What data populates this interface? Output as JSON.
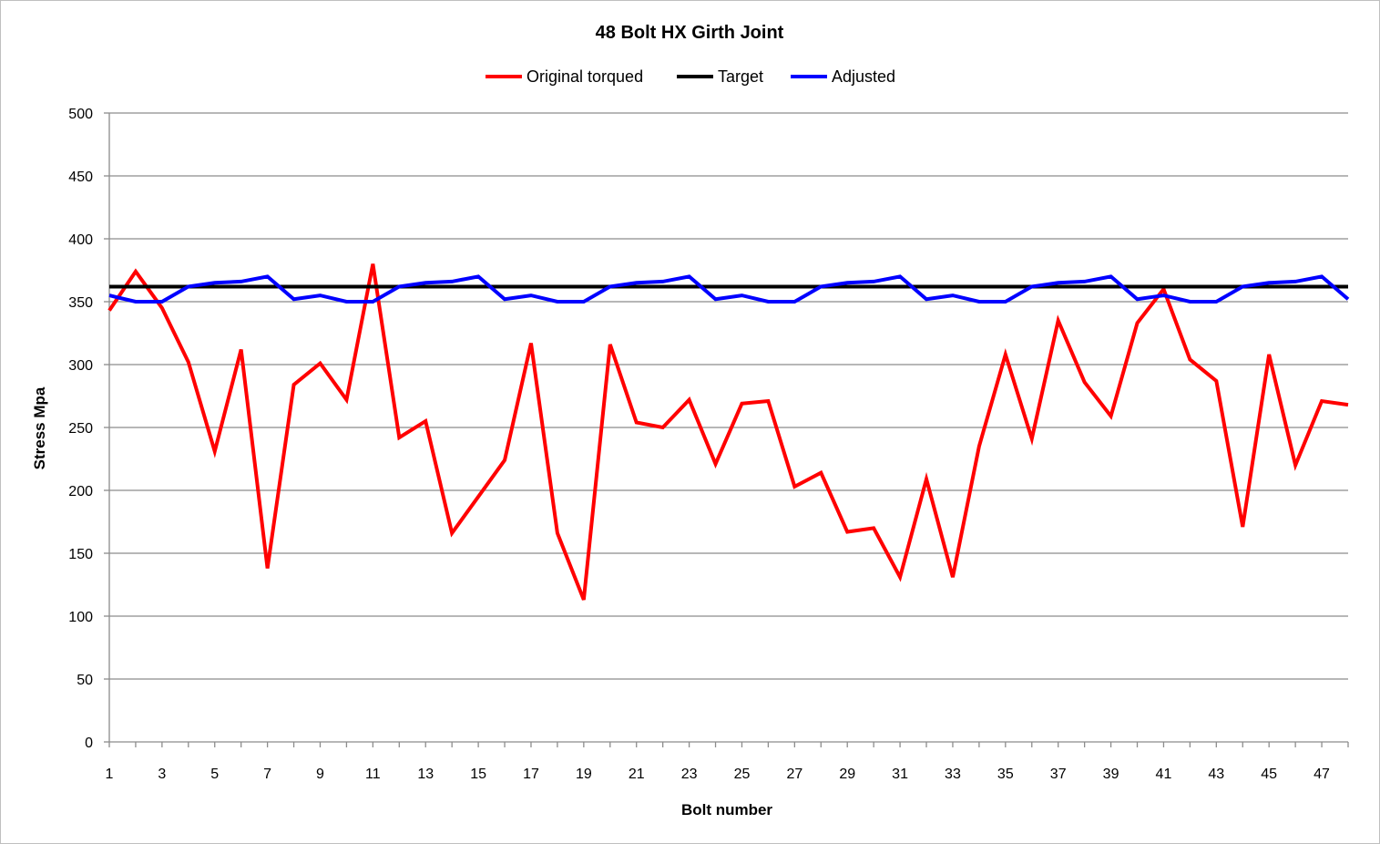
{
  "chart_data": {
    "type": "line",
    "title": "48 Bolt HX Girth Joint",
    "xlabel": "Bolt number",
    "ylabel": "Stress Mpa",
    "ylim": [
      0,
      500
    ],
    "y_ticks": [
      0,
      50,
      100,
      150,
      200,
      250,
      300,
      350,
      400,
      450,
      500
    ],
    "x": [
      1,
      2,
      3,
      4,
      5,
      6,
      7,
      8,
      9,
      10,
      11,
      12,
      13,
      14,
      15,
      16,
      17,
      18,
      19,
      20,
      21,
      22,
      23,
      24,
      25,
      26,
      27,
      28,
      29,
      30,
      31,
      32,
      33,
      34,
      35,
      36,
      37,
      38,
      39,
      40,
      41,
      42,
      43,
      44,
      45,
      46,
      47,
      48
    ],
    "x_tick_labels": [
      "1",
      "3",
      "5",
      "7",
      "9",
      "11",
      "13",
      "15",
      "17",
      "19",
      "21",
      "23",
      "25",
      "27",
      "29",
      "31",
      "33",
      "35",
      "37",
      "39",
      "41",
      "43",
      "45",
      "47"
    ],
    "grid": "horizontal",
    "legend_position": "top",
    "series": [
      {
        "name": "Original torqued",
        "color": "#ff0000",
        "values": [
          343,
          374,
          345,
          302,
          231,
          312,
          138,
          284,
          301,
          272,
          380,
          242,
          255,
          166,
          195,
          224,
          317,
          166,
          113,
          316,
          254,
          250,
          272,
          221,
          269,
          271,
          203,
          214,
          167,
          170,
          131,
          209,
          131,
          235,
          308,
          241,
          335,
          286,
          259,
          333,
          360,
          304,
          287,
          171,
          308,
          220,
          271,
          268
        ]
      },
      {
        "name": "Target",
        "color": "#000000",
        "values": [
          362,
          362,
          362,
          362,
          362,
          362,
          362,
          362,
          362,
          362,
          362,
          362,
          362,
          362,
          362,
          362,
          362,
          362,
          362,
          362,
          362,
          362,
          362,
          362,
          362,
          362,
          362,
          362,
          362,
          362,
          362,
          362,
          362,
          362,
          362,
          362,
          362,
          362,
          362,
          362,
          362,
          362,
          362,
          362,
          362,
          362,
          362,
          362
        ]
      },
      {
        "name": "Adjusted",
        "color": "#0000ff",
        "values": [
          355,
          350,
          350,
          362,
          365,
          366,
          370,
          352,
          355,
          350,
          350,
          362,
          365,
          366,
          370,
          352,
          355,
          350,
          350,
          362,
          365,
          366,
          370,
          352,
          355,
          350,
          350,
          362,
          365,
          366,
          370,
          352,
          355,
          350,
          350,
          362,
          365,
          366,
          370,
          352,
          355,
          350,
          350,
          362,
          365,
          366,
          370,
          352
        ]
      }
    ]
  }
}
